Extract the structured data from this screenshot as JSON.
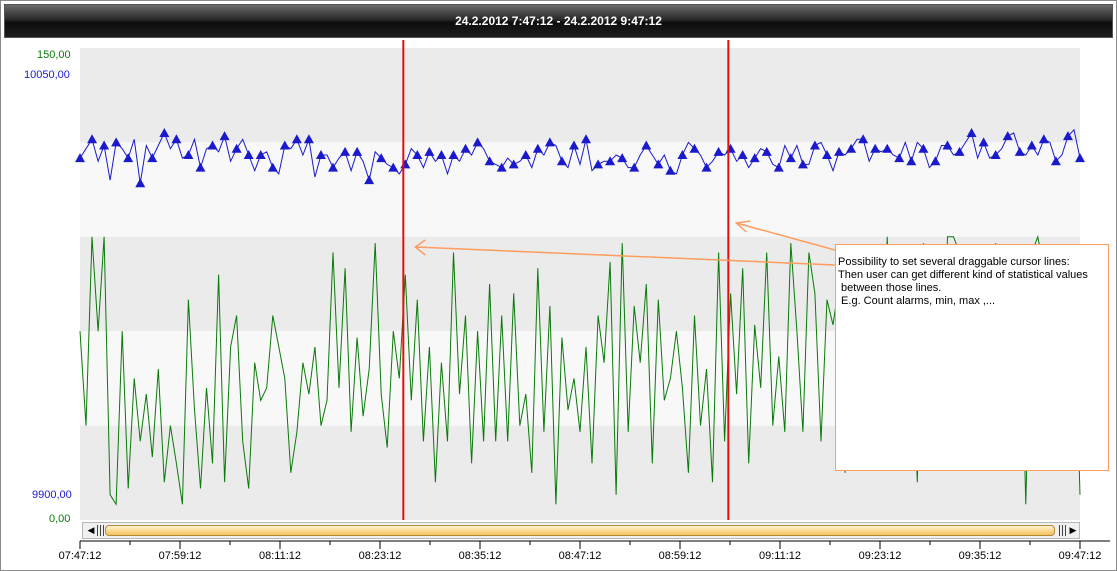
{
  "header": {
    "title": "24.2.2012 7:47:12 - 24.2.2012 9:47:12"
  },
  "axes": {
    "left_green": {
      "max_label": "150,00",
      "min_label": "0,00",
      "color": "#0a7a0a"
    },
    "left_blue": {
      "max_label": "10050,00",
      "min_label": "9900,00",
      "color": "#1a1acc"
    }
  },
  "annotation": {
    "lines": [
      "Possibility to set several draggable cursor lines:",
      "Then user can get different kind of statistical values",
      " between those lines.",
      "",
      " E.g. Count alarms, min, max ,..."
    ],
    "color": "#ff9c5e"
  },
  "chart_data": {
    "type": "line",
    "x_start": "07:47:12",
    "x_end": "09:47:12",
    "x_ticks": [
      "07:47:12",
      "07:59:12",
      "08:11:12",
      "08:23:12",
      "08:35:12",
      "08:47:12",
      "08:59:12",
      "09:11:12",
      "09:23:12",
      "09:35:12",
      "09:47:12"
    ],
    "cursor_lines": [
      "08:26:00",
      "09:05:00"
    ],
    "cursor_color": "#e01010",
    "band_colors": [
      "#ebebeb",
      "#f8f8f8"
    ],
    "series": [
      {
        "axis": "left_blue",
        "color": "#1a1acc",
        "marker": "triangle",
        "ylim": [
          9900,
          10050
        ],
        "values": [
          10015,
          10018,
          10021,
          10014,
          10019,
          10008,
          10020,
          10018,
          10015,
          10021,
          10007,
          10019,
          10015,
          10019,
          10023,
          10018,
          10021,
          10015,
          10016,
          10021,
          10012,
          10018,
          10019,
          10017,
          10022,
          10014,
          10018,
          10021,
          10016,
          10011,
          10016,
          10017,
          10012,
          10010,
          10019,
          10018,
          10021,
          10016,
          10021,
          10009,
          10016,
          10016,
          10012,
          10015,
          10017,
          10011,
          10017,
          10014,
          10008,
          10017,
          10015,
          10013,
          10012,
          10010,
          10013,
          10018,
          10016,
          10012,
          10017,
          10014,
          10016,
          10010,
          10016,
          10014,
          10018,
          10016,
          10020,
          10018,
          10014,
          10013,
          10012,
          10015,
          10013,
          10014,
          10016,
          10012,
          10018,
          10016,
          10020,
          10019,
          10014,
          10012,
          10019,
          10013,
          10021,
          10011,
          10013,
          10014,
          10014,
          10016,
          10015,
          10012,
          10012,
          10016,
          10019,
          10016,
          10013,
          10016,
          10011,
          10010,
          10016,
          10020,
          10018,
          10016,
          10012,
          10014,
          10017,
          10016,
          10018,
          10014,
          10016,
          10012,
          10015,
          10018,
          10017,
          10013,
          10012,
          10019,
          10015,
          10019,
          10013,
          10013,
          10019,
          10020,
          10016,
          10011,
          10017,
          10016,
          10018,
          10021,
          10021,
          10014,
          10018,
          10017,
          10018,
          10016,
          10015,
          10020,
          10014,
          10020,
          10018,
          10012,
          10014,
          10019,
          10019,
          10016,
          10017,
          10020,
          10023,
          10015,
          10020,
          10015,
          10016,
          10018,
          10022,
          10023,
          10017,
          10016,
          10019,
          10016,
          10021,
          10020,
          10014,
          10016,
          10022,
          10024,
          10015
        ],
        "marker_every": 2
      },
      {
        "axis": "left_green",
        "color": "#0a7a0a",
        "ylim": [
          0,
          150
        ],
        "values": [
          60,
          30,
          90,
          60,
          90,
          8,
          5,
          60,
          10,
          45,
          25,
          40,
          20,
          48,
          12,
          30,
          18,
          5,
          70,
          35,
          10,
          42,
          18,
          78,
          12,
          55,
          65,
          25,
          10,
          50,
          38,
          42,
          65,
          55,
          45,
          15,
          28,
          50,
          40,
          55,
          30,
          38,
          85,
          42,
          80,
          28,
          58,
          33,
          48,
          88,
          40,
          23,
          60,
          45,
          78,
          38,
          70,
          25,
          55,
          12,
          50,
          25,
          85,
          40,
          65,
          18,
          60,
          25,
          75,
          25,
          65,
          25,
          72,
          30,
          40,
          15,
          80,
          28,
          68,
          5,
          58,
          35,
          45,
          28,
          55,
          18,
          65,
          50,
          82,
          8,
          88,
          28,
          68,
          50,
          75,
          18,
          70,
          38,
          45,
          60,
          42,
          15,
          65,
          30,
          48,
          12,
          85,
          25,
          72,
          40,
          80,
          18,
          62,
          42,
          85,
          30,
          52,
          28,
          88,
          60,
          28,
          85,
          72,
          25,
          70,
          62,
          75,
          15,
          80,
          42,
          85,
          20,
          65,
          25,
          90,
          40,
          55,
          18,
          70,
          12,
          88,
          30,
          58,
          28,
          90,
          90,
          85,
          35,
          85,
          65,
          60,
          40,
          88,
          35,
          72,
          58,
          80,
          5,
          85,
          90,
          80,
          40,
          78,
          45,
          60,
          75,
          8
        ]
      }
    ]
  }
}
